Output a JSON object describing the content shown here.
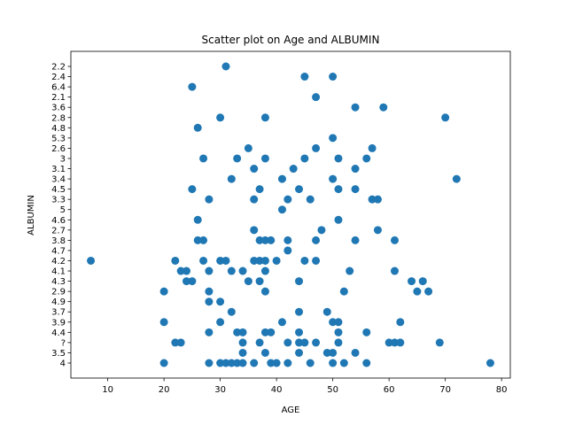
{
  "chart_data": {
    "type": "scatter",
    "title": "Scatter plot on Age and ALBUMIN",
    "xlabel": "AGE",
    "ylabel": "ALBUMIN",
    "xlim": [
      3.45,
      81.55
    ],
    "xticks": [
      10,
      20,
      30,
      40,
      50,
      60,
      70,
      80
    ],
    "categories": [
      "4",
      "3.5",
      "?",
      "4.4",
      "3.9",
      "3.7",
      "4.9",
      "2.9",
      "4.3",
      "4.1",
      "4.2",
      "4.7",
      "3.8",
      "2.7",
      "4.6",
      "5",
      "3.3",
      "4.5",
      "3.4",
      "3.1",
      "3",
      "2.6",
      "5.3",
      "4.8",
      "2.8",
      "3.6",
      "2.1",
      "6.4",
      "2.4",
      "2.2"
    ],
    "grid": false,
    "marker_color": "#1f77b4",
    "points": [
      {
        "x": 31,
        "y": "2.2"
      },
      {
        "x": 45,
        "y": "2.4"
      },
      {
        "x": 50,
        "y": "2.4"
      },
      {
        "x": 25,
        "y": "6.4"
      },
      {
        "x": 47,
        "y": "2.1"
      },
      {
        "x": 54,
        "y": "3.6"
      },
      {
        "x": 59,
        "y": "3.6"
      },
      {
        "x": 30,
        "y": "2.8"
      },
      {
        "x": 38,
        "y": "2.8"
      },
      {
        "x": 70,
        "y": "2.8"
      },
      {
        "x": 26,
        "y": "4.8"
      },
      {
        "x": 50,
        "y": "5.3"
      },
      {
        "x": 35,
        "y": "2.6"
      },
      {
        "x": 47,
        "y": "2.6"
      },
      {
        "x": 57,
        "y": "2.6"
      },
      {
        "x": 27,
        "y": "3"
      },
      {
        "x": 33,
        "y": "3"
      },
      {
        "x": 38,
        "y": "3"
      },
      {
        "x": 45,
        "y": "3"
      },
      {
        "x": 51,
        "y": "3"
      },
      {
        "x": 56,
        "y": "3"
      },
      {
        "x": 36,
        "y": "3.1"
      },
      {
        "x": 43,
        "y": "3.1"
      },
      {
        "x": 54,
        "y": "3.1"
      },
      {
        "x": 32,
        "y": "3.4"
      },
      {
        "x": 41,
        "y": "3.4"
      },
      {
        "x": 50,
        "y": "3.4"
      },
      {
        "x": 72,
        "y": "3.4"
      },
      {
        "x": 25,
        "y": "4.5"
      },
      {
        "x": 37,
        "y": "4.5"
      },
      {
        "x": 44,
        "y": "4.5"
      },
      {
        "x": 51,
        "y": "4.5"
      },
      {
        "x": 54,
        "y": "4.5"
      },
      {
        "x": 28,
        "y": "3.3"
      },
      {
        "x": 36,
        "y": "3.3"
      },
      {
        "x": 42,
        "y": "3.3"
      },
      {
        "x": 46,
        "y": "3.3"
      },
      {
        "x": 57,
        "y": "3.3"
      },
      {
        "x": 58,
        "y": "3.3"
      },
      {
        "x": 41,
        "y": "5"
      },
      {
        "x": 26,
        "y": "4.6"
      },
      {
        "x": 51,
        "y": "4.6"
      },
      {
        "x": 36,
        "y": "2.7"
      },
      {
        "x": 48,
        "y": "2.7"
      },
      {
        "x": 58,
        "y": "2.7"
      },
      {
        "x": 26,
        "y": "3.8"
      },
      {
        "x": 27,
        "y": "3.8"
      },
      {
        "x": 37,
        "y": "3.8"
      },
      {
        "x": 38,
        "y": "3.8"
      },
      {
        "x": 39,
        "y": "3.8"
      },
      {
        "x": 42,
        "y": "3.8"
      },
      {
        "x": 47,
        "y": "3.8"
      },
      {
        "x": 54,
        "y": "3.8"
      },
      {
        "x": 61,
        "y": "3.8"
      },
      {
        "x": 42,
        "y": "4.7"
      },
      {
        "x": 7,
        "y": "4.2"
      },
      {
        "x": 22,
        "y": "4.2"
      },
      {
        "x": 27,
        "y": "4.2"
      },
      {
        "x": 30,
        "y": "4.2"
      },
      {
        "x": 31,
        "y": "4.2"
      },
      {
        "x": 36,
        "y": "4.2"
      },
      {
        "x": 37,
        "y": "4.2"
      },
      {
        "x": 38,
        "y": "4.2"
      },
      {
        "x": 40,
        "y": "4.2"
      },
      {
        "x": 45,
        "y": "4.2"
      },
      {
        "x": 47,
        "y": "4.2"
      },
      {
        "x": 23,
        "y": "4.1"
      },
      {
        "x": 24,
        "y": "4.1"
      },
      {
        "x": 28,
        "y": "4.1"
      },
      {
        "x": 32,
        "y": "4.1"
      },
      {
        "x": 34,
        "y": "4.1"
      },
      {
        "x": 38,
        "y": "4.1"
      },
      {
        "x": 53,
        "y": "4.1"
      },
      {
        "x": 61,
        "y": "4.1"
      },
      {
        "x": 24,
        "y": "4.3"
      },
      {
        "x": 25,
        "y": "4.3"
      },
      {
        "x": 35,
        "y": "4.3"
      },
      {
        "x": 37,
        "y": "4.3"
      },
      {
        "x": 44,
        "y": "4.3"
      },
      {
        "x": 64,
        "y": "4.3"
      },
      {
        "x": 66,
        "y": "4.3"
      },
      {
        "x": 20,
        "y": "2.9"
      },
      {
        "x": 28,
        "y": "2.9"
      },
      {
        "x": 38,
        "y": "2.9"
      },
      {
        "x": 52,
        "y": "2.9"
      },
      {
        "x": 65,
        "y": "2.9"
      },
      {
        "x": 67,
        "y": "2.9"
      },
      {
        "x": 28,
        "y": "4.9"
      },
      {
        "x": 30,
        "y": "4.9"
      },
      {
        "x": 32,
        "y": "3.7"
      },
      {
        "x": 44,
        "y": "3.7"
      },
      {
        "x": 49,
        "y": "3.7"
      },
      {
        "x": 20,
        "y": "3.9"
      },
      {
        "x": 30,
        "y": "3.9"
      },
      {
        "x": 41,
        "y": "3.9"
      },
      {
        "x": 50,
        "y": "3.9"
      },
      {
        "x": 51,
        "y": "3.9"
      },
      {
        "x": 62,
        "y": "3.9"
      },
      {
        "x": 28,
        "y": "4.4"
      },
      {
        "x": 33,
        "y": "4.4"
      },
      {
        "x": 34,
        "y": "4.4"
      },
      {
        "x": 38,
        "y": "4.4"
      },
      {
        "x": 39,
        "y": "4.4"
      },
      {
        "x": 44,
        "y": "4.4"
      },
      {
        "x": 51,
        "y": "4.4"
      },
      {
        "x": 56,
        "y": "4.4"
      },
      {
        "x": 22,
        "y": "?"
      },
      {
        "x": 23,
        "y": "?"
      },
      {
        "x": 34,
        "y": "?"
      },
      {
        "x": 37,
        "y": "?"
      },
      {
        "x": 42,
        "y": "?"
      },
      {
        "x": 44,
        "y": "?"
      },
      {
        "x": 45,
        "y": "?"
      },
      {
        "x": 47,
        "y": "?"
      },
      {
        "x": 51,
        "y": "?"
      },
      {
        "x": 60,
        "y": "?"
      },
      {
        "x": 61,
        "y": "?"
      },
      {
        "x": 62,
        "y": "?"
      },
      {
        "x": 69,
        "y": "?"
      },
      {
        "x": 34,
        "y": "3.5"
      },
      {
        "x": 38,
        "y": "3.5"
      },
      {
        "x": 44,
        "y": "3.5"
      },
      {
        "x": 49,
        "y": "3.5"
      },
      {
        "x": 50,
        "y": "3.5"
      },
      {
        "x": 54,
        "y": "3.5"
      },
      {
        "x": 20,
        "y": "4"
      },
      {
        "x": 28,
        "y": "4"
      },
      {
        "x": 30,
        "y": "4"
      },
      {
        "x": 31,
        "y": "4"
      },
      {
        "x": 32,
        "y": "4"
      },
      {
        "x": 33,
        "y": "4"
      },
      {
        "x": 34,
        "y": "4"
      },
      {
        "x": 36,
        "y": "4"
      },
      {
        "x": 39,
        "y": "4"
      },
      {
        "x": 40,
        "y": "4"
      },
      {
        "x": 42,
        "y": "4"
      },
      {
        "x": 46,
        "y": "4"
      },
      {
        "x": 50,
        "y": "4"
      },
      {
        "x": 52,
        "y": "4"
      },
      {
        "x": 56,
        "y": "4"
      },
      {
        "x": 78,
        "y": "4"
      }
    ]
  }
}
